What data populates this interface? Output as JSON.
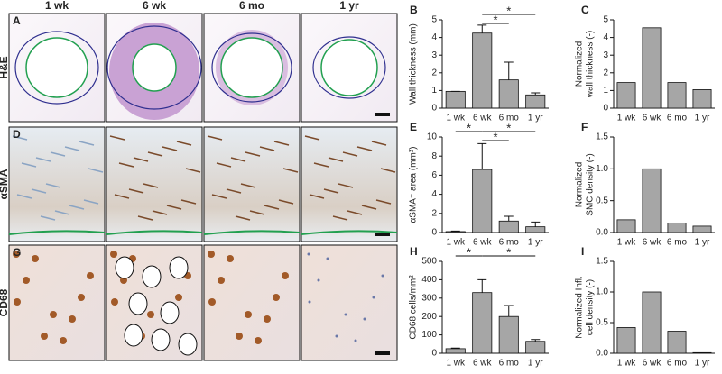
{
  "column_headers": [
    "1 wk",
    "6 wk",
    "6 mo",
    "1 yr"
  ],
  "row_labels": [
    "H&E",
    "αSMA",
    "CD68"
  ],
  "image_panel_labels": [
    "A",
    "D",
    "G"
  ],
  "chart_data": [
    {
      "type": "bar",
      "panel": "B",
      "ylabel": [
        "Wall thickness (mm)"
      ],
      "categories": [
        "1 wk",
        "6 wk",
        "6 mo",
        "1 yr"
      ],
      "values": [
        0.95,
        4.25,
        1.6,
        0.75
      ],
      "errors": [
        0,
        0.45,
        1.0,
        0.12
      ],
      "color": "#a6a6a6",
      "ylim": [
        0,
        5
      ],
      "yticks": [
        0,
        1,
        2,
        3,
        4,
        5
      ],
      "significance": [
        {
          "between": [
            "6 wk",
            "1 yr"
          ],
          "label": "*"
        },
        {
          "between": [
            "6 wk",
            "6 mo"
          ],
          "label": "*"
        }
      ]
    },
    {
      "type": "bar",
      "panel": "C",
      "ylabel": [
        "Normalized",
        "wall thickness (-)"
      ],
      "categories": [
        "1 wk",
        "6 wk",
        "6 mo",
        "1 yr"
      ],
      "values": [
        1.45,
        4.55,
        1.45,
        1.05
      ],
      "color": "#a6a6a6",
      "ylim": [
        0,
        5
      ],
      "yticks": [
        0,
        1,
        2,
        3,
        4,
        5
      ]
    },
    {
      "type": "bar",
      "panel": "E",
      "ylabel": [
        "αSMA⁺ area (mm²)"
      ],
      "categories": [
        "1 wk",
        "6 wk",
        "6 mo",
        "1 yr"
      ],
      "values": [
        0.1,
        6.6,
        1.2,
        0.6
      ],
      "errors": [
        0.05,
        2.7,
        0.5,
        0.5
      ],
      "color": "#a6a6a6",
      "ylim": [
        0,
        10
      ],
      "yticks": [
        0,
        2,
        4,
        6,
        8,
        10
      ],
      "significance": [
        {
          "between": [
            "6 wk",
            "1 yr"
          ],
          "label": "*"
        },
        {
          "between": [
            "1 wk",
            "6 wk"
          ],
          "label": "*"
        },
        {
          "between": [
            "6 wk",
            "6 mo"
          ],
          "label": "*"
        }
      ]
    },
    {
      "type": "bar",
      "panel": "F",
      "ylabel": [
        "Normalized",
        "SMC density (-)"
      ],
      "categories": [
        "1 wk",
        "6 wk",
        "6 mo",
        "1 yr"
      ],
      "values": [
        0.2,
        1.0,
        0.15,
        0.1
      ],
      "color": "#a6a6a6",
      "ylim": [
        0,
        1.5
      ],
      "yticks": [
        {
          "value": 0,
          "label": "0.0"
        },
        {
          "value": 0.5,
          "label": "0.5"
        },
        {
          "value": 1,
          "label": "1.0"
        },
        {
          "value": 1.5,
          "label": "1.5"
        }
      ]
    },
    {
      "type": "bar",
      "panel": "H",
      "ylabel": [
        "CD68 cells/mm²"
      ],
      "categories": [
        "1 wk",
        "6 wk",
        "6 mo",
        "1 yr"
      ],
      "values": [
        25,
        330,
        200,
        65
      ],
      "errors": [
        3,
        70,
        60,
        10
      ],
      "color": "#a6a6a6",
      "ylim": [
        0,
        500
      ],
      "yticks": [
        0,
        100,
        200,
        300,
        400,
        500
      ],
      "significance": [
        {
          "between": [
            "1 wk",
            "6 wk"
          ],
          "label": "*"
        },
        {
          "between": [
            "6 wk",
            "1 yr"
          ],
          "label": "*"
        }
      ]
    },
    {
      "type": "bar",
      "panel": "I",
      "ylabel": [
        "Normalized Infl.",
        "cell density (-)"
      ],
      "categories": [
        "1 wk",
        "6 wk",
        "6 mo",
        "1 yr"
      ],
      "values": [
        0.42,
        1.0,
        0.36,
        0.01
      ],
      "color": "#a6a6a6",
      "ylim": [
        0,
        1.5
      ],
      "yticks": [
        {
          "value": 0,
          "label": "0.0"
        },
        {
          "value": 0.5,
          "label": "0.5"
        },
        {
          "value": 1,
          "label": "1.0"
        },
        {
          "value": 1.5,
          "label": "1.5"
        }
      ]
    }
  ]
}
